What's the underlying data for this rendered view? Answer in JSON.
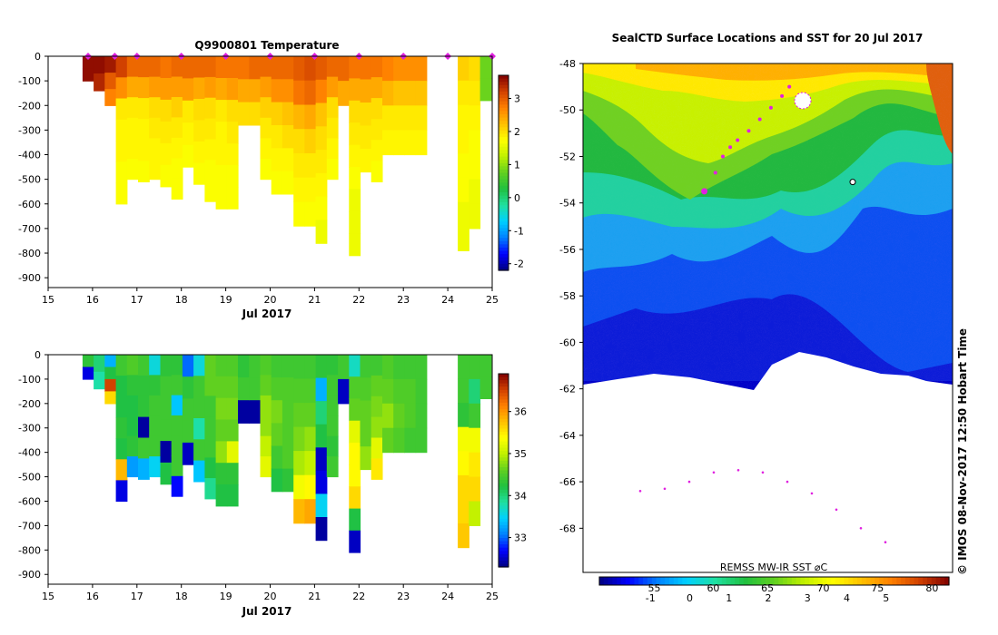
{
  "colors": {
    "jet": [
      "#00007f",
      "#0000ff",
      "#0080ff",
      "#00d0ff",
      "#20e0a0",
      "#20c040",
      "#60d020",
      "#c0f000",
      "#ffff00",
      "#ffc000",
      "#ff8000",
      "#d04000",
      "#800000"
    ]
  },
  "chart_data": [
    {
      "type": "heatmap",
      "title": "Q9900801  Temperature",
      "xlabel": "Jul 2017",
      "x_ticks": [
        "15",
        "16",
        "17",
        "18",
        "19",
        "20",
        "21",
        "22",
        "23",
        "24",
        "25"
      ],
      "xlim": [
        15,
        25
      ],
      "y_ticks": [
        "0",
        "-100",
        "-200",
        "-300",
        "-400",
        "-500",
        "-600",
        "-700",
        "-800",
        "-900"
      ],
      "ylim": [
        -940,
        0
      ],
      "colorbar": {
        "range": [
          -2.2,
          3.7
        ],
        "ticks": [
          "3",
          "2",
          "1",
          "0",
          "-1",
          "-2"
        ],
        "tick_values": [
          3,
          2,
          1,
          0,
          -1,
          -2
        ]
      },
      "surface_markers": [
        15.9,
        16.5,
        17.0,
        18.0,
        19.0,
        20.0,
        21.0,
        22.0,
        23.0,
        24.0,
        25.0
      ],
      "profiles": [
        {
          "x": 15.9,
          "depth": 100,
          "values": [
            3.6,
            3.6
          ]
        },
        {
          "x": 16.15,
          "depth": 140,
          "values": [
            3.6,
            3.4
          ]
        },
        {
          "x": 16.4,
          "depth": 200,
          "values": [
            3.5,
            3.0,
            2.7
          ]
        },
        {
          "x": 16.65,
          "depth": 600,
          "values": [
            3.2,
            2.6,
            1.9,
            1.8,
            1.8,
            1.7,
            1.7
          ]
        },
        {
          "x": 16.9,
          "depth": 500,
          "values": [
            2.9,
            2.4,
            1.9,
            1.8,
            1.8,
            1.7
          ]
        },
        {
          "x": 17.15,
          "depth": 510,
          "values": [
            2.9,
            2.4,
            1.9,
            1.8,
            1.8,
            1.7
          ]
        },
        {
          "x": 17.4,
          "depth": 500,
          "values": [
            2.9,
            2.5,
            2.0,
            1.9,
            1.8,
            1.8
          ]
        },
        {
          "x": 17.65,
          "depth": 530,
          "values": [
            2.8,
            2.5,
            2.0,
            1.9,
            1.8,
            1.7
          ]
        },
        {
          "x": 17.9,
          "depth": 580,
          "values": [
            2.9,
            2.5,
            2.1,
            1.9,
            1.8,
            1.7,
            1.7
          ]
        },
        {
          "x": 18.15,
          "depth": 450,
          "values": [
            2.9,
            2.5,
            1.9,
            1.8,
            1.7
          ]
        },
        {
          "x": 18.4,
          "depth": 520,
          "values": [
            2.9,
            2.4,
            2.0,
            1.9,
            1.8,
            1.7
          ]
        },
        {
          "x": 18.65,
          "depth": 590,
          "values": [
            2.9,
            2.5,
            2.0,
            1.9,
            1.8,
            1.7,
            1.7
          ]
        },
        {
          "x": 18.9,
          "depth": 620,
          "values": [
            2.8,
            2.4,
            1.9,
            1.8,
            1.8,
            1.7,
            1.7
          ]
        },
        {
          "x": 19.15,
          "depth": 620,
          "values": [
            2.8,
            2.5,
            2.0,
            1.9,
            1.8,
            1.7,
            1.7
          ]
        },
        {
          "x": 19.4,
          "depth": 280,
          "values": [
            2.8,
            2.4,
            2.0
          ]
        },
        {
          "x": 19.65,
          "depth": 280,
          "values": [
            2.9,
            2.4,
            2.0
          ]
        },
        {
          "x": 19.9,
          "depth": 500,
          "values": [
            2.9,
            2.5,
            2.1,
            1.9,
            1.8,
            1.7
          ]
        },
        {
          "x": 20.15,
          "depth": 560,
          "values": [
            2.9,
            2.6,
            2.1,
            1.9,
            1.8,
            1.7
          ]
        },
        {
          "x": 20.4,
          "depth": 560,
          "values": [
            2.9,
            2.6,
            2.2,
            2.0,
            1.8,
            1.7
          ]
        },
        {
          "x": 20.65,
          "depth": 690,
          "values": [
            3.0,
            2.8,
            2.3,
            2.0,
            1.9,
            1.8,
            1.7
          ]
        },
        {
          "x": 20.9,
          "depth": 690,
          "values": [
            3.1,
            2.9,
            2.4,
            2.1,
            1.9,
            1.8,
            1.7
          ]
        },
        {
          "x": 21.15,
          "depth": 760,
          "values": [
            3.0,
            2.7,
            2.2,
            2.0,
            1.9,
            1.8,
            1.7,
            1.6
          ]
        },
        {
          "x": 21.4,
          "depth": 500,
          "values": [
            2.9,
            2.5,
            2.0,
            1.9,
            1.8,
            1.7
          ]
        },
        {
          "x": 21.65,
          "depth": 200,
          "values": [
            2.9,
            2.4
          ]
        },
        {
          "x": 21.9,
          "depth": 810,
          "values": [
            2.8,
            2.4,
            2.0,
            1.9,
            1.8,
            1.7,
            1.6,
            1.6,
            1.6
          ]
        },
        {
          "x": 22.15,
          "depth": 470,
          "values": [
            2.8,
            2.4,
            2.0,
            1.9,
            1.8
          ]
        },
        {
          "x": 22.4,
          "depth": 510,
          "values": [
            2.8,
            2.4,
            2.0,
            1.9,
            1.8,
            1.7
          ]
        },
        {
          "x": 22.65,
          "depth": 400,
          "values": [
            2.7,
            2.3,
            1.9,
            1.8
          ]
        },
        {
          "x": 22.9,
          "depth": 400,
          "values": [
            2.6,
            2.2,
            1.9,
            1.8
          ]
        },
        {
          "x": 23.15,
          "depth": 400,
          "values": [
            2.6,
            2.2,
            1.9,
            1.8
          ]
        },
        {
          "x": 23.4,
          "depth": 400,
          "values": [
            2.6,
            2.2,
            1.9,
            1.8
          ]
        },
        {
          "x": 24.35,
          "depth": 790,
          "values": [
            2.1,
            1.9,
            1.8,
            1.8,
            1.7,
            1.7,
            1.6,
            1.6
          ]
        },
        {
          "x": 24.6,
          "depth": 700,
          "values": [
            2.0,
            1.9,
            1.8,
            1.7,
            1.7,
            1.6,
            1.6
          ]
        },
        {
          "x": 24.85,
          "depth": 180,
          "values": [
            0.8,
            0.8
          ]
        }
      ]
    },
    {
      "type": "heatmap",
      "title": "",
      "xlabel": "Jul 2017",
      "x_ticks": [
        "15",
        "16",
        "17",
        "18",
        "19",
        "20",
        "21",
        "22",
        "23",
        "24",
        "25"
      ],
      "xlim": [
        15,
        25
      ],
      "y_ticks": [
        "0",
        "-100",
        "-200",
        "-300",
        "-400",
        "-500",
        "-600",
        "-700",
        "-800",
        "-900"
      ],
      "ylim": [
        -940,
        0
      ],
      "colorbar": {
        "range": [
          32.3,
          36.9
        ],
        "ticks": [
          "36",
          "35",
          "34",
          "33"
        ],
        "tick_values": [
          36,
          35,
          34,
          33
        ]
      },
      "profiles": [
        {
          "x": 15.9,
          "depth": 100,
          "values": [
            34.3,
            32.6
          ]
        },
        {
          "x": 16.15,
          "depth": 140,
          "values": [
            34.0,
            33.8
          ]
        },
        {
          "x": 16.4,
          "depth": 200,
          "values": [
            33.3,
            34.2,
            36.5,
            35.6
          ]
        },
        {
          "x": 16.65,
          "depth": 600,
          "values": [
            34.4,
            34.2,
            34.2,
            34.3,
            34.2,
            35.8,
            32.6
          ]
        },
        {
          "x": 16.9,
          "depth": 500,
          "values": [
            34.5,
            34.3,
            34.2,
            34.2,
            34.3,
            33.2
          ]
        },
        {
          "x": 17.15,
          "depth": 510,
          "values": [
            34.4,
            34.3,
            34.3,
            32.4,
            34.4,
            33.3
          ]
        },
        {
          "x": 17.4,
          "depth": 500,
          "values": [
            33.6,
            34.3,
            34.4,
            34.4,
            34.4,
            33.5
          ]
        },
        {
          "x": 17.65,
          "depth": 530,
          "values": [
            34.3,
            34.4,
            34.4,
            34.4,
            32.4,
            34.2
          ]
        },
        {
          "x": 17.9,
          "depth": 580,
          "values": [
            34.3,
            34.4,
            33.4,
            34.4,
            34.4,
            34.4,
            32.7
          ]
        },
        {
          "x": 18.15,
          "depth": 450,
          "values": [
            33.0,
            34.3,
            34.4,
            34.4,
            32.5
          ]
        },
        {
          "x": 18.4,
          "depth": 520,
          "values": [
            33.6,
            34.4,
            34.4,
            33.8,
            34.4,
            33.4
          ]
        },
        {
          "x": 18.65,
          "depth": 590,
          "values": [
            34.6,
            34.6,
            34.4,
            34.4,
            34.4,
            34.2,
            33.9
          ]
        },
        {
          "x": 18.9,
          "depth": 620,
          "values": [
            34.5,
            34.6,
            34.7,
            34.6,
            34.8,
            34.3,
            34.2
          ]
        },
        {
          "x": 19.15,
          "depth": 620,
          "values": [
            34.5,
            34.6,
            34.7,
            34.6,
            35.2,
            34.3,
            34.2
          ]
        },
        {
          "x": 19.4,
          "depth": 280,
          "values": [
            34.3,
            34.4,
            32.4
          ]
        },
        {
          "x": 19.65,
          "depth": 280,
          "values": [
            34.4,
            34.4,
            32.4
          ]
        },
        {
          "x": 19.9,
          "depth": 500,
          "values": [
            34.5,
            34.6,
            34.8,
            34.8,
            35.0,
            35.2
          ]
        },
        {
          "x": 20.15,
          "depth": 560,
          "values": [
            34.4,
            34.5,
            34.7,
            34.6,
            34.4,
            34.2
          ]
        },
        {
          "x": 20.4,
          "depth": 560,
          "values": [
            34.4,
            34.5,
            34.5,
            34.5,
            34.5,
            34.3
          ]
        },
        {
          "x": 20.65,
          "depth": 690,
          "values": [
            34.4,
            34.5,
            34.6,
            34.7,
            34.9,
            35.3,
            35.8
          ]
        },
        {
          "x": 20.9,
          "depth": 690,
          "values": [
            34.4,
            34.5,
            34.6,
            34.8,
            35.0,
            35.4,
            35.9
          ]
        },
        {
          "x": 21.15,
          "depth": 760,
          "values": [
            34.3,
            33.3,
            34.0,
            34.2,
            32.5,
            32.6,
            33.5,
            32.4
          ]
        },
        {
          "x": 21.4,
          "depth": 500,
          "values": [
            34.3,
            34.4,
            34.4,
            34.4,
            34.3,
            34.4
          ]
        },
        {
          "x": 21.65,
          "depth": 200,
          "values": [
            34.4,
            32.5
          ]
        },
        {
          "x": 21.9,
          "depth": 810,
          "values": [
            33.7,
            34.5,
            34.6,
            35.2,
            35.4,
            35.4,
            35.6,
            34.2,
            32.5
          ]
        },
        {
          "x": 22.15,
          "depth": 470,
          "values": [
            34.4,
            34.5,
            34.6,
            34.6,
            34.8
          ]
        },
        {
          "x": 22.4,
          "depth": 510,
          "values": [
            34.4,
            34.6,
            34.7,
            34.8,
            35.2,
            35.5
          ]
        },
        {
          "x": 22.65,
          "depth": 400,
          "values": [
            34.5,
            34.6,
            34.8,
            34.6
          ]
        },
        {
          "x": 22.9,
          "depth": 400,
          "values": [
            34.4,
            34.5,
            34.6,
            34.5
          ]
        },
        {
          "x": 23.15,
          "depth": 400,
          "values": [
            34.4,
            34.5,
            34.5,
            34.4
          ]
        },
        {
          "x": 23.4,
          "depth": 400,
          "values": [
            34.4,
            34.4,
            34.4,
            34.4
          ]
        },
        {
          "x": 24.35,
          "depth": 790,
          "values": [
            34.4,
            34.4,
            34.3,
            35.3,
            35.4,
            35.6,
            35.6,
            35.7
          ]
        },
        {
          "x": 24.6,
          "depth": 700,
          "values": [
            34.4,
            34.0,
            34.4,
            35.3,
            35.5,
            35.6,
            35.0
          ]
        },
        {
          "x": 24.85,
          "depth": 180,
          "values": [
            34.4,
            34.4
          ]
        }
      ]
    },
    {
      "type": "heatmap",
      "title": "SealCTD Surface Locations and SST for 20 Jul 2017",
      "xlabel": "",
      "y_ticks": [
        "-48",
        "-50",
        "-52",
        "-54",
        "-56",
        "-58",
        "-60",
        "-62",
        "-64",
        "-66",
        "-68"
      ],
      "ylim": [
        -69.9,
        -48
      ],
      "colorbar": {
        "range": [
          -2.3,
          6.6
        ],
        "label": "REMSS MW-IR SST ⌀C",
        "ticks_upper": [
          "55",
          "60",
          "65",
          "70",
          "75",
          "80"
        ],
        "ticks_upper_values": [
          -0.9,
          0.6,
          1.98,
          3.4,
          4.78,
          6.17
        ],
        "ticks_lower": [
          "-1",
          "0",
          "1",
          "2",
          "3",
          "4",
          "5"
        ],
        "ticks_lower_values": [
          -1,
          0,
          1,
          2,
          3,
          4,
          5
        ]
      },
      "track": [
        [
          -53.5,
          0.23
        ],
        [
          -52.7,
          0.26
        ],
        [
          -52.0,
          0.28
        ],
        [
          -51.6,
          0.3
        ],
        [
          -51.3,
          0.32
        ],
        [
          -50.9,
          0.35
        ],
        [
          -50.4,
          0.38
        ],
        [
          -49.9,
          0.41
        ],
        [
          -49.4,
          0.44
        ],
        [
          -49.0,
          0.46
        ]
      ],
      "southern_track_lats": [
        -66.4,
        -66.3,
        -66.0,
        -65.6,
        -65.5,
        -65.6,
        -66.0,
        -66.5,
        -67.2,
        -68.0,
        -68.6
      ]
    }
  ],
  "side_label": "©  IMOS 08-Nov-2017 12:50 Hobart Time"
}
